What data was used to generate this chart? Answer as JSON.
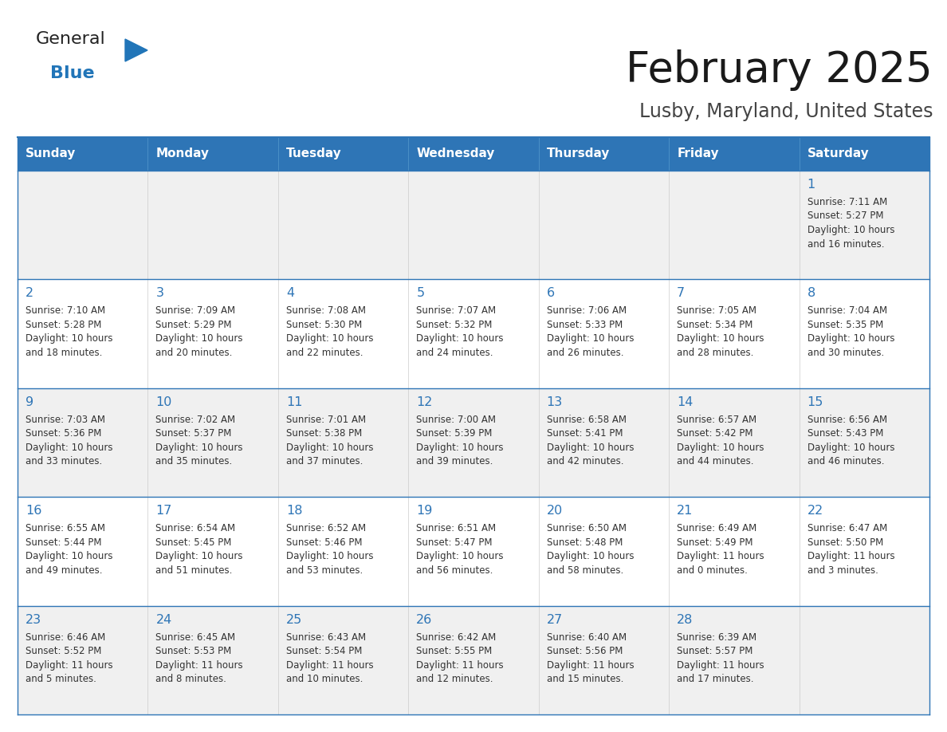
{
  "title": "February 2025",
  "subtitle": "Lusby, Maryland, United States",
  "header_bg": "#2E75B6",
  "header_text_color": "#FFFFFF",
  "cell_bg_white": "#FFFFFF",
  "cell_bg_gray": "#F0F0F0",
  "border_color": "#2E75B6",
  "row_line_color": "#2E75B6",
  "col_line_color": "#CCCCCC",
  "title_color": "#1A1A1A",
  "subtitle_color": "#444444",
  "day_num_color": "#2E75B6",
  "detail_color": "#333333",
  "days_of_week": [
    "Sunday",
    "Monday",
    "Tuesday",
    "Wednesday",
    "Thursday",
    "Friday",
    "Saturday"
  ],
  "weeks": [
    [
      {
        "day": null,
        "info": null
      },
      {
        "day": null,
        "info": null
      },
      {
        "day": null,
        "info": null
      },
      {
        "day": null,
        "info": null
      },
      {
        "day": null,
        "info": null
      },
      {
        "day": null,
        "info": null
      },
      {
        "day": 1,
        "info": "Sunrise: 7:11 AM\nSunset: 5:27 PM\nDaylight: 10 hours\nand 16 minutes."
      }
    ],
    [
      {
        "day": 2,
        "info": "Sunrise: 7:10 AM\nSunset: 5:28 PM\nDaylight: 10 hours\nand 18 minutes."
      },
      {
        "day": 3,
        "info": "Sunrise: 7:09 AM\nSunset: 5:29 PM\nDaylight: 10 hours\nand 20 minutes."
      },
      {
        "day": 4,
        "info": "Sunrise: 7:08 AM\nSunset: 5:30 PM\nDaylight: 10 hours\nand 22 minutes."
      },
      {
        "day": 5,
        "info": "Sunrise: 7:07 AM\nSunset: 5:32 PM\nDaylight: 10 hours\nand 24 minutes."
      },
      {
        "day": 6,
        "info": "Sunrise: 7:06 AM\nSunset: 5:33 PM\nDaylight: 10 hours\nand 26 minutes."
      },
      {
        "day": 7,
        "info": "Sunrise: 7:05 AM\nSunset: 5:34 PM\nDaylight: 10 hours\nand 28 minutes."
      },
      {
        "day": 8,
        "info": "Sunrise: 7:04 AM\nSunset: 5:35 PM\nDaylight: 10 hours\nand 30 minutes."
      }
    ],
    [
      {
        "day": 9,
        "info": "Sunrise: 7:03 AM\nSunset: 5:36 PM\nDaylight: 10 hours\nand 33 minutes."
      },
      {
        "day": 10,
        "info": "Sunrise: 7:02 AM\nSunset: 5:37 PM\nDaylight: 10 hours\nand 35 minutes."
      },
      {
        "day": 11,
        "info": "Sunrise: 7:01 AM\nSunset: 5:38 PM\nDaylight: 10 hours\nand 37 minutes."
      },
      {
        "day": 12,
        "info": "Sunrise: 7:00 AM\nSunset: 5:39 PM\nDaylight: 10 hours\nand 39 minutes."
      },
      {
        "day": 13,
        "info": "Sunrise: 6:58 AM\nSunset: 5:41 PM\nDaylight: 10 hours\nand 42 minutes."
      },
      {
        "day": 14,
        "info": "Sunrise: 6:57 AM\nSunset: 5:42 PM\nDaylight: 10 hours\nand 44 minutes."
      },
      {
        "day": 15,
        "info": "Sunrise: 6:56 AM\nSunset: 5:43 PM\nDaylight: 10 hours\nand 46 minutes."
      }
    ],
    [
      {
        "day": 16,
        "info": "Sunrise: 6:55 AM\nSunset: 5:44 PM\nDaylight: 10 hours\nand 49 minutes."
      },
      {
        "day": 17,
        "info": "Sunrise: 6:54 AM\nSunset: 5:45 PM\nDaylight: 10 hours\nand 51 minutes."
      },
      {
        "day": 18,
        "info": "Sunrise: 6:52 AM\nSunset: 5:46 PM\nDaylight: 10 hours\nand 53 minutes."
      },
      {
        "day": 19,
        "info": "Sunrise: 6:51 AM\nSunset: 5:47 PM\nDaylight: 10 hours\nand 56 minutes."
      },
      {
        "day": 20,
        "info": "Sunrise: 6:50 AM\nSunset: 5:48 PM\nDaylight: 10 hours\nand 58 minutes."
      },
      {
        "day": 21,
        "info": "Sunrise: 6:49 AM\nSunset: 5:49 PM\nDaylight: 11 hours\nand 0 minutes."
      },
      {
        "day": 22,
        "info": "Sunrise: 6:47 AM\nSunset: 5:50 PM\nDaylight: 11 hours\nand 3 minutes."
      }
    ],
    [
      {
        "day": 23,
        "info": "Sunrise: 6:46 AM\nSunset: 5:52 PM\nDaylight: 11 hours\nand 5 minutes."
      },
      {
        "day": 24,
        "info": "Sunrise: 6:45 AM\nSunset: 5:53 PM\nDaylight: 11 hours\nand 8 minutes."
      },
      {
        "day": 25,
        "info": "Sunrise: 6:43 AM\nSunset: 5:54 PM\nDaylight: 11 hours\nand 10 minutes."
      },
      {
        "day": 26,
        "info": "Sunrise: 6:42 AM\nSunset: 5:55 PM\nDaylight: 11 hours\nand 12 minutes."
      },
      {
        "day": 27,
        "info": "Sunrise: 6:40 AM\nSunset: 5:56 PM\nDaylight: 11 hours\nand 15 minutes."
      },
      {
        "day": 28,
        "info": "Sunrise: 6:39 AM\nSunset: 5:57 PM\nDaylight: 11 hours\nand 17 minutes."
      },
      {
        "day": null,
        "info": null
      }
    ]
  ],
  "logo_general_color": "#222222",
  "logo_blue_color": "#2175B8",
  "fig_width": 11.88,
  "fig_height": 9.18
}
